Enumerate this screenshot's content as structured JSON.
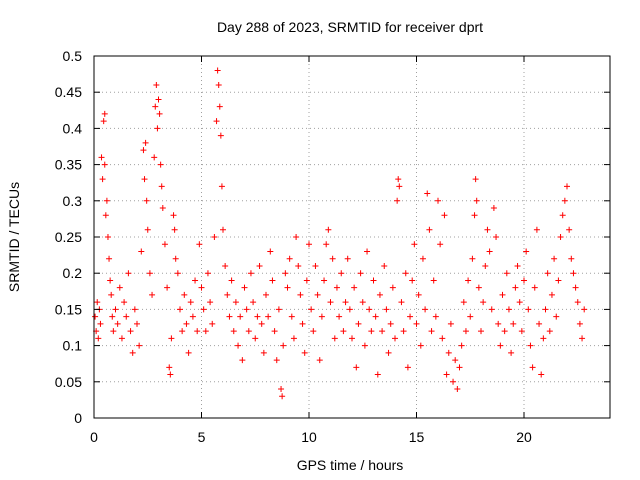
{
  "chart_data": {
    "type": "scatter",
    "title": "Day 288 of 2023, SRMTID for receiver dprt",
    "xlabel": "GPS time / hours",
    "ylabel": "SRMTID / TECUs",
    "xlim": [
      0,
      24
    ],
    "ylim": [
      0,
      0.5
    ],
    "x_ticks": [
      0,
      5,
      10,
      15,
      20
    ],
    "x_tick_labels": [
      "0",
      "5",
      "10",
      "15",
      "20"
    ],
    "y_ticks": [
      0,
      0.05,
      0.1,
      0.15,
      0.2,
      0.25,
      0.3,
      0.35,
      0.4,
      0.45,
      0.5
    ],
    "y_tick_labels": [
      "0",
      "0.05",
      "0.1",
      "0.15",
      "0.2",
      "0.25",
      "0.3",
      "0.35",
      "0.4",
      "0.45",
      "0.5"
    ],
    "grid": true,
    "legend": "none",
    "marker": "plus",
    "color": "#ff0000",
    "series": [
      {
        "values": [
          [
            0.05,
            0.14
          ],
          [
            0.1,
            0.12
          ],
          [
            0.15,
            0.16
          ],
          [
            0.2,
            0.11
          ],
          [
            0.25,
            0.15
          ],
          [
            0.3,
            0.13
          ],
          [
            0.35,
            0.36
          ],
          [
            0.4,
            0.33
          ],
          [
            0.45,
            0.41
          ],
          [
            0.5,
            0.35
          ],
          [
            0.5,
            0.42
          ],
          [
            0.55,
            0.28
          ],
          [
            0.6,
            0.3
          ],
          [
            0.65,
            0.25
          ],
          [
            0.7,
            0.22
          ],
          [
            0.75,
            0.19
          ],
          [
            0.8,
            0.17
          ],
          [
            0.85,
            0.14
          ],
          [
            0.9,
            0.12
          ],
          [
            1.0,
            0.15
          ],
          [
            1.1,
            0.13
          ],
          [
            1.2,
            0.18
          ],
          [
            1.3,
            0.11
          ],
          [
            1.4,
            0.16
          ],
          [
            1.5,
            0.14
          ],
          [
            1.6,
            0.2
          ],
          [
            1.7,
            0.12
          ],
          [
            1.8,
            0.09
          ],
          [
            1.9,
            0.15
          ],
          [
            2.0,
            0.13
          ],
          [
            2.1,
            0.1
          ],
          [
            2.2,
            0.23
          ],
          [
            2.3,
            0.37
          ],
          [
            2.35,
            0.33
          ],
          [
            2.4,
            0.38
          ],
          [
            2.45,
            0.3
          ],
          [
            2.5,
            0.26
          ],
          [
            2.6,
            0.2
          ],
          [
            2.7,
            0.17
          ],
          [
            2.8,
            0.36
          ],
          [
            2.85,
            0.43
          ],
          [
            2.9,
            0.46
          ],
          [
            2.95,
            0.4
          ],
          [
            3.0,
            0.44
          ],
          [
            3.05,
            0.42
          ],
          [
            3.1,
            0.35
          ],
          [
            3.15,
            0.32
          ],
          [
            3.2,
            0.29
          ],
          [
            3.3,
            0.24
          ],
          [
            3.4,
            0.18
          ],
          [
            3.5,
            0.07
          ],
          [
            3.55,
            0.06
          ],
          [
            3.6,
            0.11
          ],
          [
            3.7,
            0.28
          ],
          [
            3.75,
            0.26
          ],
          [
            3.8,
            0.22
          ],
          [
            3.9,
            0.2
          ],
          [
            4.0,
            0.15
          ],
          [
            4.1,
            0.12
          ],
          [
            4.2,
            0.17
          ],
          [
            4.3,
            0.13
          ],
          [
            4.4,
            0.09
          ],
          [
            4.5,
            0.16
          ],
          [
            4.6,
            0.14
          ],
          [
            4.7,
            0.19
          ],
          [
            4.8,
            0.12
          ],
          [
            4.9,
            0.24
          ],
          [
            5.0,
            0.18
          ],
          [
            5.1,
            0.15
          ],
          [
            5.2,
            0.12
          ],
          [
            5.3,
            0.2
          ],
          [
            5.4,
            0.16
          ],
          [
            5.5,
            0.13
          ],
          [
            5.6,
            0.25
          ],
          [
            5.7,
            0.41
          ],
          [
            5.75,
            0.48
          ],
          [
            5.8,
            0.46
          ],
          [
            5.85,
            0.43
          ],
          [
            5.9,
            0.39
          ],
          [
            5.95,
            0.32
          ],
          [
            6.0,
            0.26
          ],
          [
            6.1,
            0.21
          ],
          [
            6.2,
            0.17
          ],
          [
            6.3,
            0.14
          ],
          [
            6.4,
            0.19
          ],
          [
            6.5,
            0.12
          ],
          [
            6.6,
            0.16
          ],
          [
            6.7,
            0.1
          ],
          [
            6.8,
            0.14
          ],
          [
            6.9,
            0.08
          ],
          [
            7.0,
            0.18
          ],
          [
            7.1,
            0.15
          ],
          [
            7.2,
            0.12
          ],
          [
            7.3,
            0.2
          ],
          [
            7.4,
            0.16
          ],
          [
            7.5,
            0.11
          ],
          [
            7.6,
            0.14
          ],
          [
            7.7,
            0.21
          ],
          [
            7.8,
            0.13
          ],
          [
            7.9,
            0.09
          ],
          [
            8.0,
            0.17
          ],
          [
            8.1,
            0.14
          ],
          [
            8.2,
            0.23
          ],
          [
            8.3,
            0.19
          ],
          [
            8.4,
            0.12
          ],
          [
            8.5,
            0.08
          ],
          [
            8.6,
            0.15
          ],
          [
            8.7,
            0.04
          ],
          [
            8.75,
            0.03
          ],
          [
            8.8,
            0.1
          ],
          [
            8.9,
            0.2
          ],
          [
            9.0,
            0.18
          ],
          [
            9.1,
            0.22
          ],
          [
            9.2,
            0.14
          ],
          [
            9.3,
            0.11
          ],
          [
            9.4,
            0.25
          ],
          [
            9.5,
            0.21
          ],
          [
            9.6,
            0.17
          ],
          [
            9.7,
            0.13
          ],
          [
            9.8,
            0.09
          ],
          [
            9.9,
            0.19
          ],
          [
            10.0,
            0.24
          ],
          [
            10.1,
            0.15
          ],
          [
            10.2,
            0.12
          ],
          [
            10.3,
            0.21
          ],
          [
            10.4,
            0.17
          ],
          [
            10.5,
            0.08
          ],
          [
            10.6,
            0.14
          ],
          [
            10.7,
            0.19
          ],
          [
            10.8,
            0.24
          ],
          [
            10.9,
            0.26
          ],
          [
            11.0,
            0.16
          ],
          [
            11.1,
            0.22
          ],
          [
            11.2,
            0.11
          ],
          [
            11.3,
            0.18
          ],
          [
            11.4,
            0.14
          ],
          [
            11.5,
            0.2
          ],
          [
            11.6,
            0.12
          ],
          [
            11.7,
            0.16
          ],
          [
            11.8,
            0.22
          ],
          [
            11.9,
            0.15
          ],
          [
            12.0,
            0.11
          ],
          [
            12.1,
            0.18
          ],
          [
            12.2,
            0.07
          ],
          [
            12.3,
            0.13
          ],
          [
            12.4,
            0.2
          ],
          [
            12.5,
            0.16
          ],
          [
            12.6,
            0.1
          ],
          [
            12.7,
            0.23
          ],
          [
            12.8,
            0.15
          ],
          [
            12.9,
            0.12
          ],
          [
            13.0,
            0.19
          ],
          [
            13.1,
            0.14
          ],
          [
            13.2,
            0.06
          ],
          [
            13.3,
            0.17
          ],
          [
            13.4,
            0.12
          ],
          [
            13.5,
            0.21
          ],
          [
            13.6,
            0.15
          ],
          [
            13.7,
            0.09
          ],
          [
            13.8,
            0.13
          ],
          [
            13.9,
            0.18
          ],
          [
            14.0,
            0.11
          ],
          [
            14.1,
            0.3
          ],
          [
            14.15,
            0.33
          ],
          [
            14.2,
            0.32
          ],
          [
            14.3,
            0.16
          ],
          [
            14.4,
            0.12
          ],
          [
            14.5,
            0.2
          ],
          [
            14.6,
            0.07
          ],
          [
            14.7,
            0.14
          ],
          [
            14.8,
            0.19
          ],
          [
            14.9,
            0.24
          ],
          [
            15.0,
            0.13
          ],
          [
            15.1,
            0.17
          ],
          [
            15.2,
            0.1
          ],
          [
            15.3,
            0.22
          ],
          [
            15.4,
            0.15
          ],
          [
            15.5,
            0.31
          ],
          [
            15.6,
            0.26
          ],
          [
            15.7,
            0.12
          ],
          [
            15.8,
            0.19
          ],
          [
            15.9,
            0.14
          ],
          [
            16.0,
            0.3
          ],
          [
            16.1,
            0.24
          ],
          [
            16.2,
            0.11
          ],
          [
            16.3,
            0.28
          ],
          [
            16.4,
            0.06
          ],
          [
            16.5,
            0.09
          ],
          [
            16.6,
            0.13
          ],
          [
            16.7,
            0.05
          ],
          [
            16.8,
            0.08
          ],
          [
            16.9,
            0.04
          ],
          [
            17.0,
            0.07
          ],
          [
            17.1,
            0.1
          ],
          [
            17.2,
            0.16
          ],
          [
            17.3,
            0.12
          ],
          [
            17.4,
            0.19
          ],
          [
            17.5,
            0.14
          ],
          [
            17.6,
            0.22
          ],
          [
            17.7,
            0.28
          ],
          [
            17.75,
            0.33
          ],
          [
            17.8,
            0.3
          ],
          [
            17.9,
            0.18
          ],
          [
            18.0,
            0.12
          ],
          [
            18.1,
            0.16
          ],
          [
            18.2,
            0.21
          ],
          [
            18.3,
            0.26
          ],
          [
            18.4,
            0.23
          ],
          [
            18.5,
            0.15
          ],
          [
            18.6,
            0.29
          ],
          [
            18.7,
            0.25
          ],
          [
            18.8,
            0.13
          ],
          [
            18.9,
            0.1
          ],
          [
            19.0,
            0.17
          ],
          [
            19.1,
            0.12
          ],
          [
            19.2,
            0.2
          ],
          [
            19.3,
            0.15
          ],
          [
            19.4,
            0.09
          ],
          [
            19.5,
            0.13
          ],
          [
            19.6,
            0.18
          ],
          [
            19.7,
            0.21
          ],
          [
            19.8,
            0.16
          ],
          [
            19.9,
            0.12
          ],
          [
            20.0,
            0.19
          ],
          [
            20.1,
            0.23
          ],
          [
            20.2,
            0.15
          ],
          [
            20.3,
            0.1
          ],
          [
            20.4,
            0.07
          ],
          [
            20.5,
            0.18
          ],
          [
            20.6,
            0.26
          ],
          [
            20.7,
            0.13
          ],
          [
            20.8,
            0.06
          ],
          [
            20.9,
            0.11
          ],
          [
            21.0,
            0.15
          ],
          [
            21.1,
            0.2
          ],
          [
            21.2,
            0.12
          ],
          [
            21.3,
            0.17
          ],
          [
            21.4,
            0.22
          ],
          [
            21.5,
            0.14
          ],
          [
            21.6,
            0.19
          ],
          [
            21.7,
            0.25
          ],
          [
            21.8,
            0.28
          ],
          [
            21.9,
            0.3
          ],
          [
            22.0,
            0.32
          ],
          [
            22.1,
            0.26
          ],
          [
            22.2,
            0.22
          ],
          [
            22.3,
            0.2
          ],
          [
            22.4,
            0.18
          ],
          [
            22.5,
            0.16
          ],
          [
            22.6,
            0.13
          ],
          [
            22.7,
            0.11
          ],
          [
            22.8,
            0.15
          ]
        ]
      }
    ]
  }
}
